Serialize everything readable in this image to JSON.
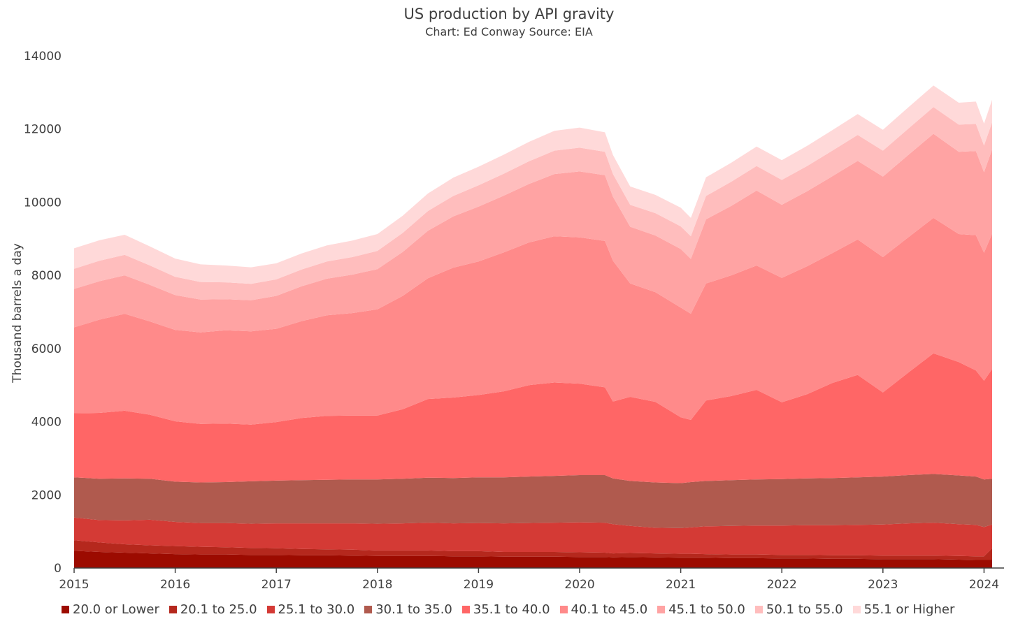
{
  "title": "US production by API gravity",
  "subtitle": "Chart: Ed Conway Source: EIA",
  "chart_data": {
    "type": "area",
    "stacked": true,
    "ylabel": "Thousand barrels a day",
    "ylim": [
      0,
      14000
    ],
    "yticks": [
      0,
      2000,
      4000,
      6000,
      8000,
      10000,
      12000,
      14000
    ],
    "xticks": [
      "2015",
      "2016",
      "2017",
      "2018",
      "2019",
      "2020",
      "2021",
      "2022",
      "2023",
      "2024"
    ],
    "xlim": [
      2015.0,
      2024.17
    ],
    "grid": false,
    "legend_position": "bottom",
    "x": [
      2015.0,
      2015.25,
      2015.5,
      2015.75,
      2016.0,
      2016.25,
      2016.5,
      2016.75,
      2017.0,
      2017.25,
      2017.5,
      2017.75,
      2018.0,
      2018.25,
      2018.5,
      2018.75,
      2019.0,
      2019.25,
      2019.5,
      2019.75,
      2020.0,
      2020.25,
      2020.33,
      2020.5,
      2020.75,
      2021.0,
      2021.1,
      2021.25,
      2021.5,
      2021.75,
      2022.0,
      2022.25,
      2022.5,
      2022.75,
      2023.0,
      2023.25,
      2023.5,
      2023.75,
      2023.92,
      2024.0,
      2024.08
    ],
    "series": [
      {
        "name": "20.0 or Lower",
        "color": "#9c0b00",
        "values": [
          470,
          440,
          420,
          400,
          380,
          370,
          370,
          360,
          360,
          350,
          350,
          340,
          330,
          330,
          330,
          320,
          320,
          310,
          310,
          310,
          300,
          300,
          290,
          300,
          290,
          280,
          280,
          280,
          270,
          270,
          260,
          260,
          250,
          250,
          240,
          240,
          240,
          230,
          220,
          220,
          220
        ]
      },
      {
        "name": "20.1 to 25.0",
        "color": "#b5281d",
        "values": [
          290,
          260,
          230,
          220,
          220,
          210,
          200,
          190,
          180,
          170,
          160,
          160,
          150,
          150,
          150,
          140,
          140,
          130,
          130,
          130,
          130,
          120,
          110,
          110,
          110,
          110,
          110,
          100,
          100,
          100,
          100,
          100,
          100,
          100,
          100,
          100,
          100,
          100,
          100,
          100,
          320
        ]
      },
      {
        "name": "25.1 to 30.0",
        "color": "#d43a35",
        "values": [
          620,
          610,
          650,
          700,
          660,
          650,
          660,
          660,
          680,
          700,
          710,
          720,
          730,
          740,
          760,
          760,
          770,
          780,
          790,
          800,
          820,
          820,
          800,
          740,
          700,
          700,
          720,
          760,
          780,
          790,
          800,
          810,
          820,
          830,
          850,
          880,
          900,
          870,
          860,
          800,
          650
        ]
      },
      {
        "name": "30.1 to 35.0",
        "color": "#b05a4e",
        "values": [
          1100,
          1130,
          1150,
          1120,
          1100,
          1110,
          1120,
          1160,
          1170,
          1180,
          1190,
          1200,
          1210,
          1220,
          1230,
          1240,
          1250,
          1260,
          1270,
          1280,
          1290,
          1300,
          1250,
          1230,
          1240,
          1230,
          1240,
          1240,
          1250,
          1260,
          1270,
          1280,
          1290,
          1300,
          1310,
          1320,
          1330,
          1330,
          1320,
          1300,
          1250
        ]
      },
      {
        "name": "35.1 to 40.0",
        "color": "#ff6666",
        "values": [
          1750,
          1800,
          1850,
          1750,
          1650,
          1600,
          1600,
          1550,
          1600,
          1700,
          1750,
          1750,
          1750,
          1900,
          2150,
          2200,
          2250,
          2350,
          2500,
          2550,
          2500,
          2400,
          2100,
          2300,
          2200,
          1800,
          1700,
          2200,
          2300,
          2450,
          2100,
          2300,
          2600,
          2800,
          2300,
          2800,
          3300,
          3100,
          2900,
          2700,
          3000
        ]
      },
      {
        "name": "40.1 to 45.0",
        "color": "#ff8a8a",
        "values": [
          2350,
          2550,
          2650,
          2550,
          2500,
          2500,
          2550,
          2550,
          2550,
          2650,
          2750,
          2800,
          2900,
          3100,
          3300,
          3550,
          3650,
          3800,
          3900,
          4000,
          4000,
          4000,
          3850,
          3100,
          3000,
          3000,
          2900,
          3200,
          3300,
          3400,
          3400,
          3500,
          3550,
          3700,
          3700,
          3700,
          3700,
          3500,
          3700,
          3500,
          3700
        ]
      },
      {
        "name": "45.1 to 50.0",
        "color": "#ffa3a3",
        "values": [
          1050,
          1050,
          1050,
          1000,
          950,
          900,
          850,
          850,
          900,
          950,
          1000,
          1050,
          1100,
          1200,
          1300,
          1400,
          1500,
          1550,
          1600,
          1700,
          1800,
          1800,
          1750,
          1550,
          1550,
          1600,
          1500,
          1750,
          1900,
          2050,
          2000,
          2050,
          2100,
          2150,
          2200,
          2250,
          2300,
          2250,
          2300,
          2200,
          2300
        ]
      },
      {
        "name": "50.1 to 55.0",
        "color": "#ffbdbd",
        "values": [
          550,
          560,
          560,
          530,
          500,
          480,
          460,
          450,
          450,
          460,
          470,
          480,
          500,
          520,
          540,
          560,
          580,
          600,
          620,
          640,
          650,
          640,
          620,
          600,
          610,
          620,
          620,
          640,
          660,
          670,
          680,
          690,
          700,
          710,
          710,
          720,
          730,
          740,
          740,
          730,
          740
        ]
      },
      {
        "name": "55.1 or Higher",
        "color": "#ffd9d9",
        "values": [
          560,
          560,
          550,
          520,
          500,
          480,
          460,
          450,
          440,
          440,
          440,
          450,
          460,
          470,
          480,
          500,
          510,
          520,
          530,
          540,
          550,
          530,
          520,
          500,
          500,
          510,
          500,
          510,
          520,
          530,
          540,
          550,
          560,
          570,
          570,
          580,
          590,
          600,
          610,
          600,
          620
        ]
      }
    ]
  }
}
